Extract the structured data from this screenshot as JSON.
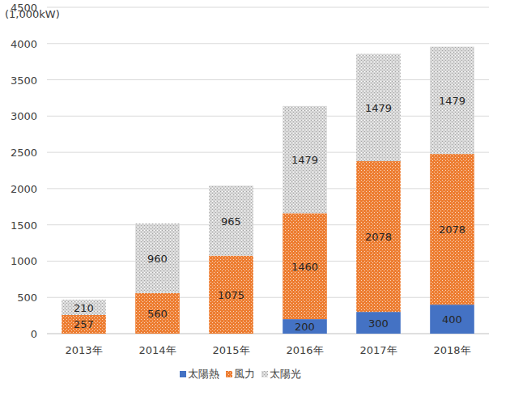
{
  "chart_data": {
    "type": "bar",
    "stacked": true,
    "data_labels": true,
    "grid": true,
    "legend": "bottom",
    "ylabel": "(1,000kW)",
    "categories": [
      "2013年",
      "2014年",
      "2015年",
      "2016年",
      "2017年",
      "2018年"
    ],
    "series": [
      {
        "name": "太陽熱",
        "color": "#4472c4",
        "values": [
          null,
          null,
          null,
          200,
          300,
          400
        ]
      },
      {
        "name": "風力",
        "color": "#ed7d31",
        "values": [
          257,
          560,
          1075,
          1460,
          2078,
          2078
        ]
      },
      {
        "name": "太陽光",
        "color": "#a5a5a5",
        "values": [
          210,
          960,
          965,
          1479,
          1479,
          1479
        ]
      }
    ],
    "ylim": [
      0,
      4500
    ],
    "yticks": [
      0,
      500,
      1000,
      1500,
      2000,
      2500,
      3000,
      3500,
      4000,
      4500
    ]
  }
}
